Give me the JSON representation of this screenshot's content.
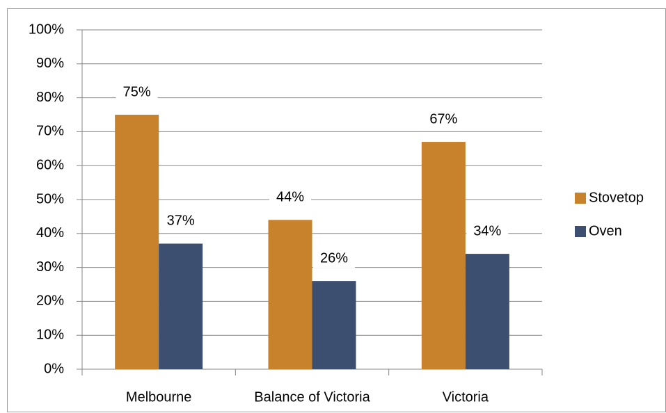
{
  "chart_data": {
    "type": "bar",
    "categories": [
      "Melbourne",
      "Balance of Victoria",
      "Victoria"
    ],
    "series": [
      {
        "name": "Stovetop",
        "color": "#c8822b",
        "values": [
          75,
          44,
          67
        ],
        "value_labels": [
          "75%",
          "44%",
          "67%"
        ]
      },
      {
        "name": "Oven",
        "color": "#3d4f70",
        "values": [
          37,
          26,
          34
        ],
        "value_labels": [
          "37%",
          "26%",
          "34%"
        ]
      }
    ],
    "ylim": [
      0,
      100
    ],
    "yticks": [
      {
        "value": 0,
        "label": "0%"
      },
      {
        "value": 10,
        "label": "10%"
      },
      {
        "value": 20,
        "label": "20%"
      },
      {
        "value": 30,
        "label": "30%"
      },
      {
        "value": 40,
        "label": "40%"
      },
      {
        "value": 50,
        "label": "50%"
      },
      {
        "value": 60,
        "label": "60%"
      },
      {
        "value": 70,
        "label": "70%"
      },
      {
        "value": 80,
        "label": "80%"
      },
      {
        "value": 90,
        "label": "90%"
      },
      {
        "value": 100,
        "label": "100%"
      }
    ],
    "grid": true,
    "legend": "right"
  }
}
